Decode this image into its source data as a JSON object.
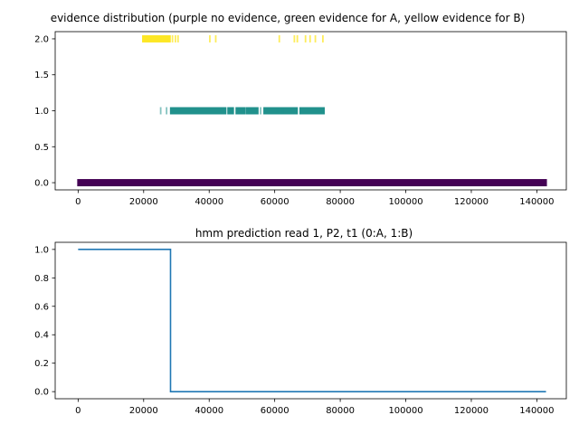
{
  "chart_data": [
    {
      "type": "scatter",
      "title": "evidence distribution (purple no evidence, green evidence for A, yellow evidence for B)",
      "xlabel": "",
      "ylabel": "",
      "xlim": [
        -7000,
        149000
      ],
      "ylim": [
        -0.1,
        2.1
      ],
      "xticks": [
        0,
        20000,
        40000,
        60000,
        80000,
        100000,
        120000,
        140000
      ],
      "xtick_labels": [
        "0",
        "20000",
        "40000",
        "60000",
        "80000",
        "100000",
        "120000",
        "140000"
      ],
      "yticks": [
        0.0,
        0.5,
        1.0,
        1.5,
        2.0
      ],
      "ytick_labels": [
        "0.0",
        "0.5",
        "1.0",
        "1.5",
        "2.0"
      ],
      "grid": false,
      "series": [
        {
          "color": "#440154",
          "y": 0,
          "segments": [
            [
              0,
              142800
            ]
          ],
          "ticks": [],
          "faint_ticks": []
        },
        {
          "color": "#21918c",
          "y": 1,
          "segments": [
            [
              28300,
              45000
            ],
            [
              45800,
              47300
            ],
            [
              48300,
              50900
            ],
            [
              51500,
              54800
            ],
            [
              56800,
              62400
            ],
            [
              62800,
              66800
            ],
            [
              67800,
              75000
            ]
          ],
          "ticks": [],
          "faint_ticks": [
            25200,
            27000,
            50200,
            55700,
            60800,
            62500
          ]
        },
        {
          "color": "#fde725",
          "y": 2,
          "segments": [
            [
              19800,
              28000
            ]
          ],
          "ticks": [
            28800,
            29700,
            30500,
            40200,
            42000,
            61400,
            66000,
            66900,
            69400,
            70800,
            72400,
            74700
          ],
          "faint_ticks": []
        }
      ]
    },
    {
      "type": "line",
      "title": "hmm prediction read 1, P2, t1 (0:A, 1:B)",
      "xlabel": "",
      "ylabel": "",
      "xlim": [
        -7000,
        149000
      ],
      "ylim": [
        -0.05,
        1.05
      ],
      "xticks": [
        0,
        20000,
        40000,
        60000,
        80000,
        100000,
        120000,
        140000
      ],
      "xtick_labels": [
        "0",
        "20000",
        "40000",
        "60000",
        "80000",
        "100000",
        "120000",
        "140000"
      ],
      "yticks": [
        0.0,
        0.2,
        0.4,
        0.6,
        0.8,
        1.0
      ],
      "ytick_labels": [
        "0.0",
        "0.2",
        "0.4",
        "0.6",
        "0.8",
        "1.0"
      ],
      "grid": false,
      "series": [
        {
          "color": "#1f77b4",
          "x": [
            0,
            28200,
            28200,
            142800
          ],
          "y": [
            1,
            1,
            0,
            0
          ]
        }
      ]
    }
  ]
}
